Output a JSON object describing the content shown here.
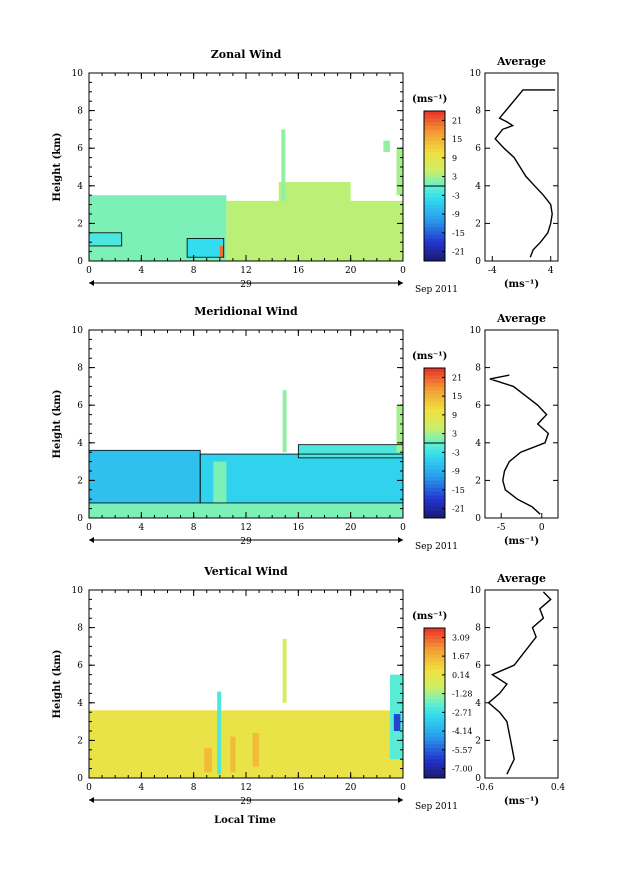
{
  "figure": {
    "xlabel": "Local Time",
    "date_label": "Sep 2011",
    "day_label": "29"
  },
  "chart_data": [
    {
      "type": "heatmap",
      "title": "Zonal Wind",
      "ylabel": "Height (km)",
      "xticks": [
        "0",
        "4",
        "8",
        "12",
        "16",
        "20",
        "0"
      ],
      "yticks": [
        "0",
        "2",
        "4",
        "6",
        "8",
        "10"
      ],
      "xlim": [
        0,
        24
      ],
      "ylim": [
        0,
        10
      ],
      "colorbar": {
        "unit": "(ms⁻¹)",
        "ticks": [
          "21",
          "15",
          "9",
          "3",
          "-3",
          "-9",
          "-15",
          "-21"
        ],
        "range": [
          -24,
          24
        ]
      },
      "zero_contour": true,
      "cells": [
        {
          "x0": 0,
          "x1": 10.5,
          "y0": 0,
          "y1": 3.5,
          "v": 1
        },
        {
          "x0": 10.5,
          "x1": 24,
          "y0": 0,
          "y1": 3.2,
          "v": 4
        },
        {
          "x0": 14.5,
          "x1": 20,
          "y0": 3.0,
          "y1": 4.2,
          "v": 4
        },
        {
          "x0": 7.5,
          "x1": 10.3,
          "y0": 0.2,
          "y1": 1.2,
          "v": -4
        },
        {
          "x0": 0,
          "x1": 2.5,
          "y0": 0.8,
          "y1": 1.5,
          "v": -2
        },
        {
          "x0": 10.0,
          "x1": 10.3,
          "y0": 0.2,
          "y1": 0.8,
          "v": 20
        },
        {
          "x0": 14.7,
          "x1": 15.0,
          "y0": 3.2,
          "y1": 7.0,
          "v": 2
        },
        {
          "x0": 23.5,
          "x1": 24,
          "y0": 3.5,
          "y1": 6.0,
          "v": 3
        },
        {
          "x0": 22.5,
          "x1": 23.0,
          "y0": 5.8,
          "y1": 6.4,
          "v": 2
        }
      ],
      "average": {
        "title": "Average",
        "xlabel": "(ms⁻¹)",
        "xticks": [
          "-4",
          "4"
        ],
        "xlim": [
          -5,
          5
        ],
        "ylim": [
          0,
          10
        ],
        "yticks": [
          "0",
          "2",
          "4",
          "6",
          "8",
          "10"
        ],
        "profile": [
          {
            "h": 0.2,
            "v": 1.2
          },
          {
            "h": 0.6,
            "v": 1.6
          },
          {
            "h": 1.0,
            "v": 2.6
          },
          {
            "h": 1.5,
            "v": 3.6
          },
          {
            "h": 2.0,
            "v": 4.0
          },
          {
            "h": 2.5,
            "v": 4.2
          },
          {
            "h": 3.0,
            "v": 4.0
          },
          {
            "h": 3.5,
            "v": 3.0
          },
          {
            "h": 4.0,
            "v": 1.8
          },
          {
            "h": 4.5,
            "v": 0.6
          },
          {
            "h": 5.0,
            "v": -0.2
          },
          {
            "h": 5.5,
            "v": -1.0
          },
          {
            "h": 6.0,
            "v": -2.4
          },
          {
            "h": 6.5,
            "v": -3.6
          },
          {
            "h": 7.0,
            "v": -2.6
          },
          {
            "h": 7.2,
            "v": -1.2
          },
          {
            "h": 7.4,
            "v": -2.0
          },
          {
            "h": 7.6,
            "v": -3.0
          },
          {
            "h": 9.1,
            "v": 0.2
          },
          {
            "h": 9.1,
            "v": 4.6
          }
        ]
      }
    },
    {
      "type": "heatmap",
      "title": "Meridional Wind",
      "ylabel": "Height (km)",
      "xticks": [
        "0",
        "4",
        "8",
        "12",
        "16",
        "20",
        "0"
      ],
      "yticks": [
        "0",
        "2",
        "4",
        "6",
        "8",
        "10"
      ],
      "xlim": [
        0,
        24
      ],
      "ylim": [
        0,
        10
      ],
      "colorbar": {
        "unit": "(ms⁻¹)",
        "ticks": [
          "21",
          "15",
          "9",
          "3",
          "-3",
          "-9",
          "-15",
          "-21"
        ],
        "range": [
          -24,
          24
        ]
      },
      "zero_contour": true,
      "cells": [
        {
          "x0": 0,
          "x1": 24,
          "y0": 0,
          "y1": 0.8,
          "v": 1
        },
        {
          "x0": 0,
          "x1": 8.5,
          "y0": 0.8,
          "y1": 3.6,
          "v": -7
        },
        {
          "x0": 8.5,
          "x1": 24,
          "y0": 0.8,
          "y1": 3.4,
          "v": -5
        },
        {
          "x0": 9.5,
          "x1": 10.5,
          "y0": 0.5,
          "y1": 3.0,
          "v": 1
        },
        {
          "x0": 16.0,
          "x1": 24,
          "y0": 3.2,
          "y1": 3.9,
          "v": -2
        },
        {
          "x0": 14.8,
          "x1": 15.1,
          "y0": 3.5,
          "y1": 6.8,
          "v": 2
        },
        {
          "x0": 23.5,
          "x1": 24,
          "y0": 3.5,
          "y1": 6.0,
          "v": 3
        }
      ],
      "average": {
        "title": "Average",
        "xlabel": "(ms⁻¹)",
        "xticks": [
          "-5",
          "0"
        ],
        "xlim": [
          -7,
          2
        ],
        "ylim": [
          0,
          10
        ],
        "yticks": [
          "0",
          "2",
          "4",
          "6",
          "8",
          "10"
        ],
        "profile": [
          {
            "h": 0.2,
            "v": -0.2
          },
          {
            "h": 0.6,
            "v": -1.2
          },
          {
            "h": 1.0,
            "v": -3.0
          },
          {
            "h": 1.5,
            "v": -4.5
          },
          {
            "h": 2.0,
            "v": -4.8
          },
          {
            "h": 2.5,
            "v": -4.6
          },
          {
            "h": 3.0,
            "v": -4.0
          },
          {
            "h": 3.5,
            "v": -2.6
          },
          {
            "h": 4.0,
            "v": 0.4
          },
          {
            "h": 4.5,
            "v": 0.8
          },
          {
            "h": 5.0,
            "v": -0.5
          },
          {
            "h": 5.5,
            "v": 0.6
          },
          {
            "h": 6.0,
            "v": -0.5
          },
          {
            "h": 6.5,
            "v": -2.0
          },
          {
            "h": 7.0,
            "v": -3.5
          },
          {
            "h": 7.4,
            "v": -6.4
          },
          {
            "h": 7.6,
            "v": -4.0
          }
        ]
      }
    },
    {
      "type": "heatmap",
      "title": "Vertical Wind",
      "ylabel": "Height (km)",
      "xticks": [
        "0",
        "4",
        "8",
        "12",
        "16",
        "20",
        "0"
      ],
      "yticks": [
        "0",
        "2",
        "4",
        "6",
        "8",
        "10"
      ],
      "xlim": [
        0,
        24
      ],
      "ylim": [
        0,
        10
      ],
      "colorbar": {
        "unit": "(ms⁻¹)",
        "ticks": [
          "3.09",
          "1.67",
          "0.14",
          "-1.28",
          "-2.71",
          "-4.14",
          "-5.57",
          "-7.00"
        ],
        "range": [
          -7.7,
          3.8
        ]
      },
      "zero_contour": false,
      "cells": [
        {
          "x0": 0,
          "x1": 24,
          "y0": 0,
          "y1": 3.6,
          "v": 0.3
        },
        {
          "x0": 8.8,
          "x1": 9.4,
          "y0": 0.3,
          "y1": 1.6,
          "v": 1.4
        },
        {
          "x0": 10.8,
          "x1": 11.2,
          "y0": 0.3,
          "y1": 2.2,
          "v": 1.4
        },
        {
          "x0": 12.5,
          "x1": 13.0,
          "y0": 0.6,
          "y1": 2.4,
          "v": 1.4
        },
        {
          "x0": 9.8,
          "x1": 10.1,
          "y0": 0.2,
          "y1": 4.6,
          "v": -2.4
        },
        {
          "x0": 23.0,
          "x1": 24,
          "y0": 1.0,
          "y1": 5.5,
          "v": -2.2
        },
        {
          "x0": 23.3,
          "x1": 23.8,
          "y0": 2.5,
          "y1": 3.4,
          "v": -6.0
        },
        {
          "x0": 14.8,
          "x1": 15.1,
          "y0": 4.0,
          "y1": 7.4,
          "v": -0.6
        }
      ],
      "average": {
        "title": "Average",
        "xlabel": "(ms⁻¹)",
        "xticks": [
          "-0.6",
          "0.4"
        ],
        "xlim": [
          -0.6,
          0.4
        ],
        "ylim": [
          0,
          10
        ],
        "yticks": [
          "0",
          "2",
          "4",
          "6",
          "8",
          "10"
        ],
        "profile": [
          {
            "h": 0.2,
            "v": -0.3
          },
          {
            "h": 1.0,
            "v": -0.2
          },
          {
            "h": 2.0,
            "v": -0.25
          },
          {
            "h": 3.0,
            "v": -0.3
          },
          {
            "h": 3.5,
            "v": -0.4
          },
          {
            "h": 4.0,
            "v": -0.55
          },
          {
            "h": 4.5,
            "v": -0.4
          },
          {
            "h": 5.0,
            "v": -0.3
          },
          {
            "h": 5.5,
            "v": -0.5
          },
          {
            "h": 6.0,
            "v": -0.2
          },
          {
            "h": 6.5,
            "v": -0.1
          },
          {
            "h": 7.0,
            "v": 0.0
          },
          {
            "h": 7.5,
            "v": 0.1
          },
          {
            "h": 8.0,
            "v": 0.05
          },
          {
            "h": 8.5,
            "v": 0.2
          },
          {
            "h": 9.0,
            "v": 0.15
          },
          {
            "h": 9.5,
            "v": 0.3
          },
          {
            "h": 9.9,
            "v": 0.2
          }
        ]
      }
    }
  ]
}
